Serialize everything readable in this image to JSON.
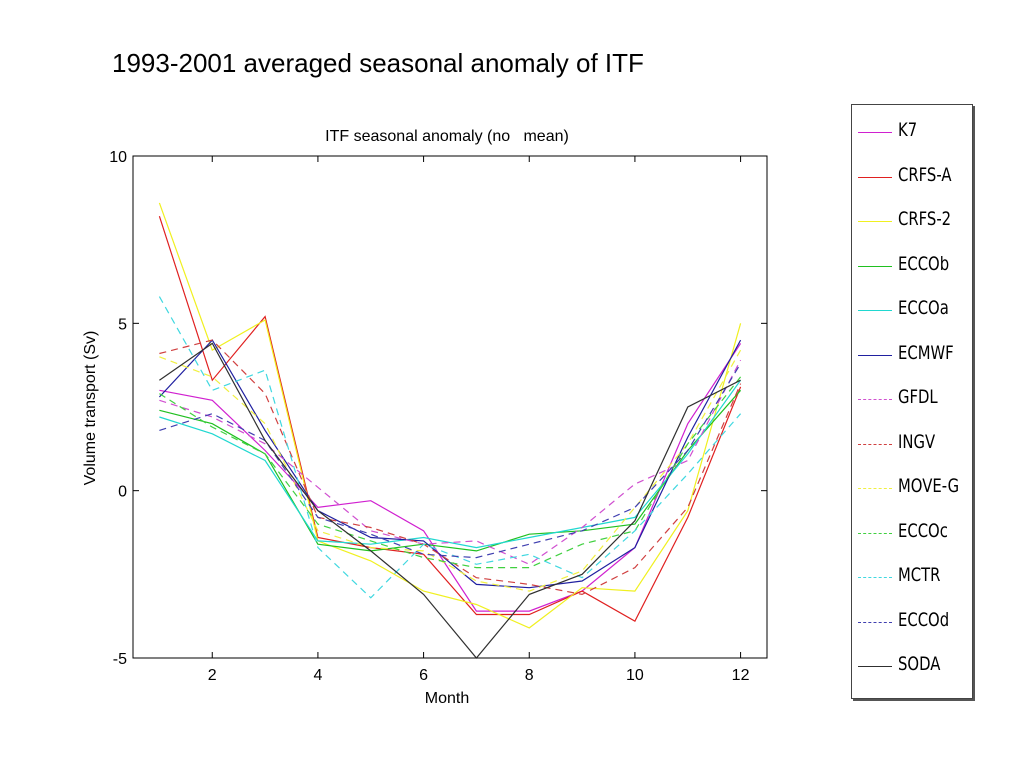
{
  "slide_title": "1993-2001 averaged seasonal anomaly of ITF",
  "chart_data": {
    "type": "line",
    "title": "ITF seasonal anomaly (no   mean)",
    "xlabel": "Month",
    "ylabel": "Volume transport (Sv)",
    "xlim": [
      0.5,
      12.5
    ],
    "ylim": [
      -5,
      10
    ],
    "xticks": [
      2,
      4,
      6,
      8,
      10,
      12
    ],
    "yticks": [
      10,
      5,
      0,
      -5
    ],
    "grid": false,
    "legend_position": "right, outside plot",
    "x": [
      1,
      2,
      3,
      4,
      5,
      6,
      7,
      8,
      9,
      10,
      11,
      12
    ],
    "series": [
      {
        "name": "K7",
        "color": "#d020d0",
        "dash": "solid",
        "values": [
          3.0,
          2.7,
          1.2,
          -0.5,
          -0.3,
          -1.2,
          -3.6,
          -3.6,
          -3.0,
          -1.7,
          2.0,
          4.4
        ]
      },
      {
        "name": "CRFS-A",
        "color": "#e02020",
        "dash": "solid",
        "values": [
          8.2,
          3.3,
          5.2,
          -1.4,
          -1.7,
          -1.9,
          -3.7,
          -3.7,
          -3.0,
          -3.9,
          -0.8,
          3.1
        ]
      },
      {
        "name": "CRFS-2",
        "color": "#f0f020",
        "dash": "solid",
        "values": [
          8.6,
          4.2,
          5.1,
          -1.5,
          -2.1,
          -3.0,
          -3.4,
          -4.1,
          -2.9,
          -3.0,
          -0.6,
          5.0
        ]
      },
      {
        "name": "ECCOb",
        "color": "#20c020",
        "dash": "solid",
        "values": [
          2.4,
          2.0,
          1.1,
          -1.6,
          -1.8,
          -1.6,
          -1.8,
          -1.3,
          -1.2,
          -1.0,
          1.2,
          3.0
        ]
      },
      {
        "name": "ECCOa",
        "color": "#20d8d0",
        "dash": "solid",
        "values": [
          2.2,
          1.7,
          0.9,
          -1.5,
          -1.6,
          -1.4,
          -1.7,
          -1.4,
          -1.1,
          -0.8,
          1.1,
          3.3
        ]
      },
      {
        "name": "ECMWF",
        "color": "#2020a0",
        "dash": "solid",
        "values": [
          2.8,
          4.5,
          1.8,
          -0.6,
          -1.4,
          -1.5,
          -2.8,
          -2.9,
          -2.7,
          -1.7,
          1.6,
          4.5
        ]
      },
      {
        "name": "GFDL",
        "color": "#d050d0",
        "dash": "dashed",
        "values": [
          2.7,
          2.2,
          1.4,
          0.1,
          -1.2,
          -1.6,
          -1.5,
          -2.2,
          -1.1,
          0.2,
          0.9,
          3.9
        ]
      },
      {
        "name": "INGV",
        "color": "#d04040",
        "dash": "dashed",
        "values": [
          4.1,
          4.5,
          2.9,
          -0.8,
          -1.1,
          -1.6,
          -2.6,
          -2.8,
          -3.1,
          -2.3,
          -0.5,
          3.2
        ]
      },
      {
        "name": "MOVE-G",
        "color": "#f0f040",
        "dash": "dashed",
        "values": [
          4.0,
          3.4,
          2.0,
          -1.2,
          -1.7,
          -1.8,
          -2.7,
          -3.0,
          -2.4,
          -0.5,
          1.4,
          4.2
        ]
      },
      {
        "name": "ECCOc",
        "color": "#40d040",
        "dash": "dashed",
        "values": [
          2.9,
          1.9,
          1.1,
          -1.0,
          -1.5,
          -2.0,
          -2.3,
          -2.3,
          -1.6,
          -1.2,
          1.4,
          3.4
        ]
      },
      {
        "name": "MCTR",
        "color": "#40d8e0",
        "dash": "dashed",
        "values": [
          5.8,
          3.0,
          3.6,
          -1.7,
          -3.2,
          -1.6,
          -2.2,
          -1.9,
          -2.6,
          -1.2,
          0.5,
          2.3
        ]
      },
      {
        "name": "ECCOd",
        "color": "#4040b0",
        "dash": "dashed",
        "values": [
          1.8,
          2.3,
          1.5,
          -0.8,
          -1.3,
          -1.9,
          -2.0,
          -1.6,
          -1.2,
          -0.5,
          1.2,
          3.8
        ]
      },
      {
        "name": "SODA",
        "color": "#303030",
        "dash": "solid",
        "values": [
          3.3,
          4.4,
          1.5,
          -0.6,
          -1.8,
          -3.1,
          -5.0,
          -3.1,
          -2.5,
          -0.9,
          2.5,
          3.3
        ]
      }
    ]
  }
}
